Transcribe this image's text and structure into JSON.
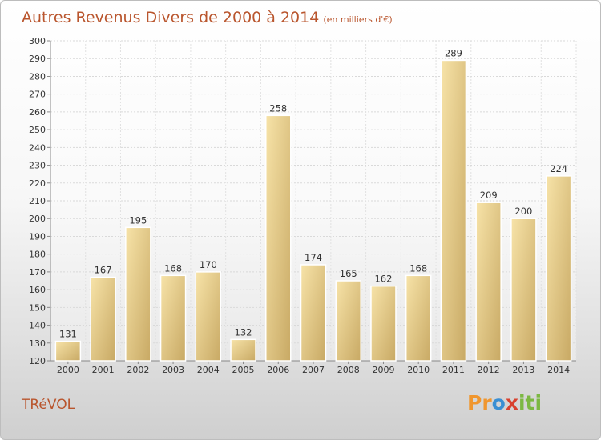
{
  "chart_data": {
    "type": "bar",
    "title": "Autres Revenus Divers de 2000 à 2014",
    "subtitle": "(en milliers d'€)",
    "categories": [
      "2000",
      "2001",
      "2002",
      "2003",
      "2004",
      "2005",
      "2006",
      "2007",
      "2008",
      "2009",
      "2010",
      "2011",
      "2012",
      "2013",
      "2014"
    ],
    "values": [
      131,
      167,
      195,
      168,
      170,
      132,
      258,
      174,
      165,
      162,
      168,
      289,
      209,
      200,
      224
    ],
    "ylim": [
      120,
      300
    ],
    "yticks": [
      120,
      130,
      140,
      150,
      160,
      170,
      180,
      190,
      200,
      210,
      220,
      230,
      240,
      250,
      260,
      270,
      280,
      290,
      300
    ],
    "grid": true,
    "colors": {
      "bar_light": "#f7e3a8",
      "bar_dark": "#c8a964",
      "title": "#b9552d"
    }
  },
  "commune": "TRéVOL",
  "logo": {
    "text": "Proxiti",
    "colors": [
      "#f0962e",
      "#3a8fd3",
      "#d8412f",
      "#7cb842"
    ]
  }
}
